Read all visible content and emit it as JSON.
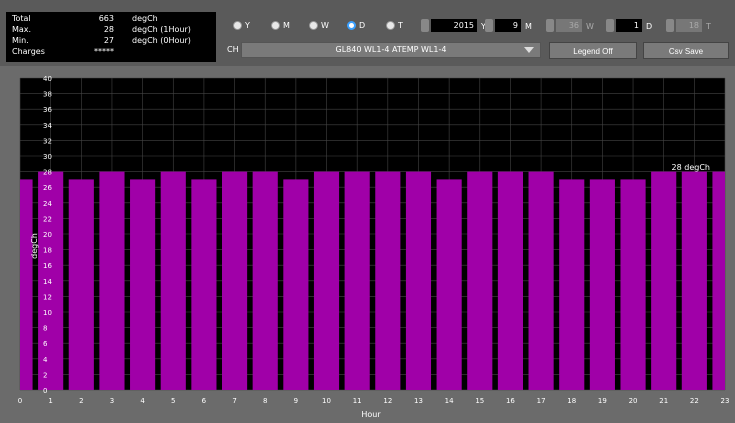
{
  "stats": {
    "total_label": "Total",
    "total_value": "663",
    "total_unit": "degCh",
    "max_label": "Max.",
    "max_value": "28",
    "max_unit": "degCh (1Hour)",
    "min_label": "Min.",
    "min_value": "27",
    "min_unit": "degCh (0Hour)",
    "charges_label": "Charges",
    "charges_value": "*****"
  },
  "period": {
    "options": [
      {
        "label": "Y",
        "selected": false
      },
      {
        "label": "M",
        "selected": false
      },
      {
        "label": "W",
        "selected": false
      },
      {
        "label": "D",
        "selected": true
      },
      {
        "label": "T",
        "selected": false
      }
    ]
  },
  "date": {
    "year": "2015",
    "year_unit": "Y",
    "month": "9",
    "month_unit": "M",
    "week": "36",
    "week_unit": "W",
    "day": "1",
    "day_unit": "D",
    "t": "18",
    "t_unit": "T"
  },
  "channel": {
    "label": "CH",
    "value": "GL840 WL1-4 ATEMP  WL1-4"
  },
  "buttons": {
    "legend": "Legend Off",
    "csv": "Csv Save"
  },
  "colors": {
    "bar": "#a000a8",
    "plot_bg": "#000000",
    "grid": "#444444"
  },
  "chart_data": {
    "type": "bar",
    "categories": [
      "0",
      "1",
      "2",
      "3",
      "4",
      "5",
      "6",
      "7",
      "8",
      "9",
      "10",
      "11",
      "12",
      "13",
      "14",
      "15",
      "16",
      "17",
      "18",
      "19",
      "20",
      "21",
      "22",
      "23"
    ],
    "values": [
      27,
      28,
      27,
      28,
      27,
      28,
      27,
      28,
      28,
      27,
      28,
      28,
      28,
      28,
      27,
      28,
      28,
      28,
      27,
      27,
      27,
      28,
      28,
      28
    ],
    "yticks": [
      "0",
      "2",
      "4",
      "6",
      "8",
      "10",
      "12",
      "14",
      "16",
      "18",
      "20",
      "22",
      "24",
      "26",
      "28",
      "30",
      "32",
      "34",
      "36",
      "38",
      "40"
    ],
    "ylim": [
      0,
      40
    ],
    "xlabel": "Hour",
    "ylabel": "degCh",
    "annotation": "28 degCh",
    "grid": true
  }
}
